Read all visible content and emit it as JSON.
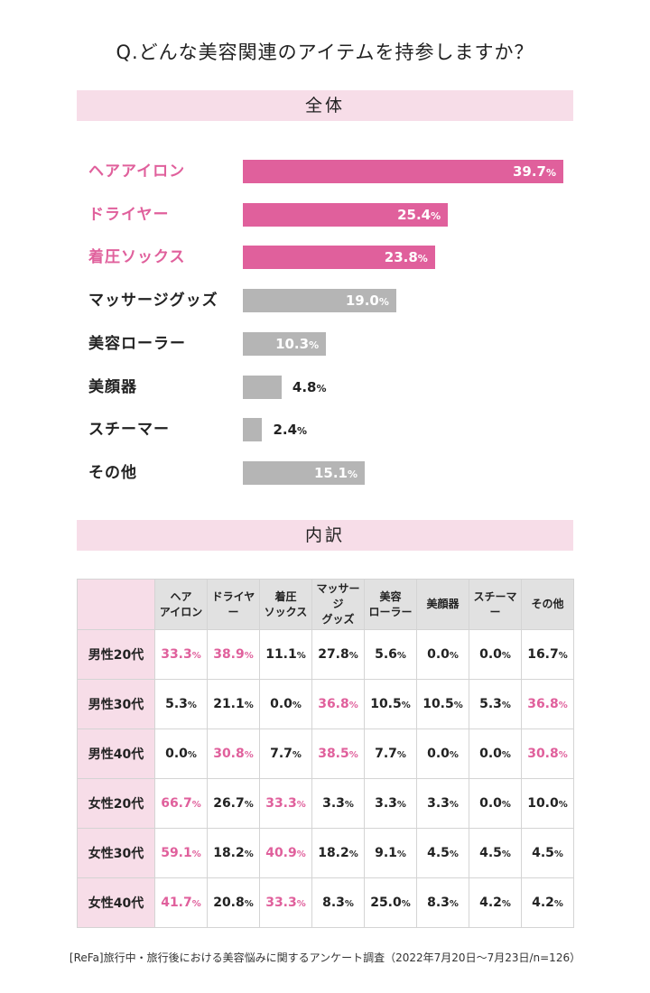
{
  "title": "Q.どんな美容関連のアイテムを持参しますか？",
  "colors": {
    "highlight": "#e0609c",
    "bar_gray": "#b5b5b5",
    "band_pink": "#f7dde8",
    "header_gray": "#e1e1e1"
  },
  "sections": {
    "overall": "全体",
    "breakdown": "内訳"
  },
  "footnote": "[ReFa]旅行中・旅行後における美容悩みに関するアンケート調査（2022年7月20日～7月23日/n=126）",
  "chart_data": [
    {
      "type": "bar",
      "orientation": "horizontal",
      "title": "全体",
      "unit": "%",
      "categories": [
        "ヘアアイロン",
        "ドライヤー",
        "着圧ソックス",
        "マッサージグッズ",
        "美容ローラー",
        "美顔器",
        "スチーマー",
        "その他"
      ],
      "values": [
        39.7,
        25.4,
        23.8,
        19.0,
        10.3,
        4.8,
        2.4,
        15.1
      ],
      "value_labels": [
        "39.7",
        "25.4",
        "23.8",
        "19.0",
        "10.3",
        "4.8",
        "2.4",
        "15.1"
      ],
      "highlighted": [
        true,
        true,
        true,
        false,
        false,
        false,
        false,
        false
      ],
      "xlim": [
        0,
        40
      ]
    },
    {
      "type": "table",
      "title": "内訳",
      "unit": "%",
      "columns": [
        "ヘア\nアイロン",
        "ドライヤー",
        "着圧\nソックス",
        "マッサージ\nグッズ",
        "美容\nローラー",
        "美顔器",
        "スチーマー",
        "その他"
      ],
      "rows": [
        {
          "label": "男性20代",
          "values": [
            "33.3",
            "38.9",
            "11.1",
            "27.8",
            "5.6",
            "0.0",
            "0.0",
            "16.7"
          ],
          "highlight": [
            true,
            true,
            false,
            false,
            false,
            false,
            false,
            false
          ]
        },
        {
          "label": "男性30代",
          "values": [
            "5.3",
            "21.1",
            "0.0",
            "36.8",
            "10.5",
            "10.5",
            "5.3",
            "36.8"
          ],
          "highlight": [
            false,
            false,
            false,
            true,
            false,
            false,
            false,
            true
          ]
        },
        {
          "label": "男性40代",
          "values": [
            "0.0",
            "30.8",
            "7.7",
            "38.5",
            "7.7",
            "0.0",
            "0.0",
            "30.8"
          ],
          "highlight": [
            false,
            true,
            false,
            true,
            false,
            false,
            false,
            true
          ]
        },
        {
          "label": "女性20代",
          "values": [
            "66.7",
            "26.7",
            "33.3",
            "3.3",
            "3.3",
            "3.3",
            "0.0",
            "10.0"
          ],
          "highlight": [
            true,
            false,
            true,
            false,
            false,
            false,
            false,
            false
          ]
        },
        {
          "label": "女性30代",
          "values": [
            "59.1",
            "18.2",
            "40.9",
            "18.2",
            "9.1",
            "4.5",
            "4.5",
            "4.5"
          ],
          "highlight": [
            true,
            false,
            true,
            false,
            false,
            false,
            false,
            false
          ]
        },
        {
          "label": "女性40代",
          "values": [
            "41.7",
            "20.8",
            "33.3",
            "8.3",
            "25.0",
            "8.3",
            "4.2",
            "4.2"
          ],
          "highlight": [
            true,
            false,
            true,
            false,
            false,
            false,
            false,
            false
          ]
        }
      ]
    }
  ]
}
